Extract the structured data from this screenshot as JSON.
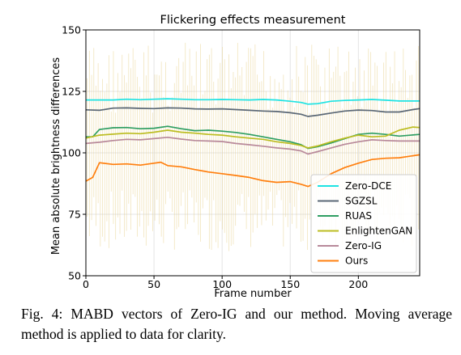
{
  "caption": "Fig. 4: MABD vectors of Zero-IG and our method. Moving average method is applied to data for clarity.",
  "chart_data": {
    "type": "line",
    "title": "Flickering effects measurement",
    "xlabel": "Frame number",
    "ylabel": "Mean absolute brightness differences",
    "xlim": [
      0,
      245
    ],
    "ylim": [
      50,
      150
    ],
    "xticks": [
      0,
      50,
      100,
      150,
      200
    ],
    "yticks": [
      50,
      75,
      100,
      125,
      150
    ],
    "grid": true,
    "legend_position": "lower-right",
    "raw_data_band": {
      "note": "faint per-frame spikes behind the smoothed lines",
      "color": "#e6cf88",
      "low": 60,
      "high": 145
    },
    "series": [
      {
        "name": "Zero-DCE",
        "color": "#1ee3e3",
        "points": [
          [
            0,
            121.5
          ],
          [
            10,
            121.5
          ],
          [
            20,
            121.5
          ],
          [
            30,
            121.8
          ],
          [
            40,
            121.6
          ],
          [
            50,
            121.8
          ],
          [
            60,
            122.0
          ],
          [
            70,
            121.8
          ],
          [
            80,
            121.6
          ],
          [
            90,
            121.6
          ],
          [
            100,
            121.7
          ],
          [
            110,
            121.6
          ],
          [
            120,
            121.5
          ],
          [
            130,
            121.7
          ],
          [
            140,
            121.5
          ],
          [
            150,
            121.0
          ],
          [
            158,
            120.5
          ],
          [
            163,
            119.8
          ],
          [
            170,
            120.0
          ],
          [
            180,
            121.0
          ],
          [
            190,
            121.3
          ],
          [
            200,
            121.5
          ],
          [
            210,
            121.7
          ],
          [
            220,
            121.4
          ],
          [
            230,
            121.1
          ],
          [
            245,
            121.1
          ]
        ]
      },
      {
        "name": "SGZSL",
        "color": "#5a6775",
        "points": [
          [
            0,
            117.5
          ],
          [
            10,
            117.3
          ],
          [
            20,
            118.2
          ],
          [
            30,
            118.3
          ],
          [
            40,
            118.1
          ],
          [
            50,
            118.0
          ],
          [
            60,
            118.3
          ],
          [
            70,
            118.2
          ],
          [
            80,
            117.9
          ],
          [
            90,
            117.8
          ],
          [
            100,
            117.9
          ],
          [
            110,
            117.6
          ],
          [
            120,
            117.3
          ],
          [
            130,
            117.0
          ],
          [
            140,
            116.8
          ],
          [
            150,
            116.3
          ],
          [
            158,
            115.7
          ],
          [
            163,
            114.8
          ],
          [
            170,
            115.3
          ],
          [
            180,
            116.2
          ],
          [
            190,
            117.0
          ],
          [
            200,
            117.4
          ],
          [
            210,
            117.2
          ],
          [
            220,
            116.6
          ],
          [
            230,
            116.6
          ],
          [
            240,
            117.6
          ],
          [
            245,
            118.0
          ]
        ]
      },
      {
        "name": "RUAS",
        "color": "#2e9e62",
        "points": [
          [
            0,
            106.5
          ],
          [
            5,
            106.5
          ],
          [
            10,
            109.5
          ],
          [
            20,
            110.2
          ],
          [
            30,
            110.3
          ],
          [
            40,
            109.8
          ],
          [
            50,
            110.0
          ],
          [
            60,
            110.8
          ],
          [
            70,
            109.8
          ],
          [
            80,
            109.0
          ],
          [
            90,
            109.2
          ],
          [
            100,
            108.8
          ],
          [
            110,
            108.3
          ],
          [
            120,
            107.5
          ],
          [
            130,
            106.5
          ],
          [
            140,
            105.5
          ],
          [
            150,
            104.5
          ],
          [
            158,
            103.3
          ],
          [
            163,
            101.8
          ],
          [
            170,
            102.5
          ],
          [
            180,
            104.0
          ],
          [
            190,
            105.8
          ],
          [
            200,
            107.5
          ],
          [
            210,
            108.0
          ],
          [
            220,
            107.5
          ],
          [
            230,
            106.8
          ],
          [
            245,
            107.5
          ]
        ]
      },
      {
        "name": "EnlightenGAN",
        "color": "#bcbd22",
        "points": [
          [
            0,
            106.0
          ],
          [
            10,
            107.2
          ],
          [
            20,
            107.6
          ],
          [
            30,
            108.0
          ],
          [
            40,
            107.8
          ],
          [
            50,
            108.4
          ],
          [
            60,
            109.2
          ],
          [
            70,
            108.4
          ],
          [
            80,
            108.0
          ],
          [
            90,
            107.5
          ],
          [
            100,
            107.2
          ],
          [
            110,
            106.5
          ],
          [
            120,
            106.0
          ],
          [
            130,
            105.5
          ],
          [
            140,
            104.5
          ],
          [
            150,
            103.8
          ],
          [
            158,
            103.0
          ],
          [
            163,
            102.0
          ],
          [
            170,
            102.8
          ],
          [
            180,
            104.5
          ],
          [
            190,
            106.0
          ],
          [
            200,
            107.2
          ],
          [
            210,
            106.5
          ],
          [
            220,
            106.8
          ],
          [
            230,
            109.2
          ],
          [
            240,
            110.5
          ],
          [
            245,
            110.3
          ]
        ]
      },
      {
        "name": "Zero-IG",
        "color": "#b8899a",
        "points": [
          [
            0,
            103.8
          ],
          [
            10,
            104.3
          ],
          [
            20,
            105.0
          ],
          [
            30,
            105.5
          ],
          [
            40,
            105.3
          ],
          [
            50,
            105.8
          ],
          [
            60,
            106.3
          ],
          [
            70,
            105.6
          ],
          [
            80,
            105.0
          ],
          [
            90,
            104.8
          ],
          [
            100,
            104.6
          ],
          [
            110,
            103.8
          ],
          [
            120,
            103.3
          ],
          [
            130,
            102.7
          ],
          [
            140,
            102.0
          ],
          [
            150,
            101.5
          ],
          [
            158,
            100.8
          ],
          [
            163,
            99.5
          ],
          [
            170,
            100.5
          ],
          [
            180,
            102.0
          ],
          [
            190,
            103.5
          ],
          [
            200,
            104.5
          ],
          [
            210,
            105.3
          ],
          [
            220,
            105.0
          ],
          [
            230,
            104.8
          ],
          [
            245,
            104.8
          ]
        ]
      },
      {
        "name": "Ours",
        "color": "#ff7f0e",
        "points": [
          [
            0,
            88.5
          ],
          [
            5,
            90.0
          ],
          [
            10,
            96.0
          ],
          [
            20,
            95.3
          ],
          [
            30,
            95.5
          ],
          [
            40,
            95.0
          ],
          [
            50,
            95.8
          ],
          [
            55,
            96.2
          ],
          [
            60,
            94.8
          ],
          [
            70,
            94.3
          ],
          [
            80,
            93.2
          ],
          [
            90,
            92.2
          ],
          [
            100,
            91.5
          ],
          [
            110,
            90.8
          ],
          [
            120,
            90.0
          ],
          [
            130,
            88.7
          ],
          [
            140,
            88.0
          ],
          [
            150,
            88.3
          ],
          [
            158,
            87.2
          ],
          [
            163,
            86.3
          ],
          [
            170,
            88.0
          ],
          [
            180,
            91.5
          ],
          [
            190,
            94.0
          ],
          [
            200,
            95.8
          ],
          [
            210,
            97.3
          ],
          [
            220,
            97.8
          ],
          [
            230,
            98.0
          ],
          [
            240,
            98.8
          ],
          [
            245,
            99.2
          ]
        ]
      }
    ]
  }
}
